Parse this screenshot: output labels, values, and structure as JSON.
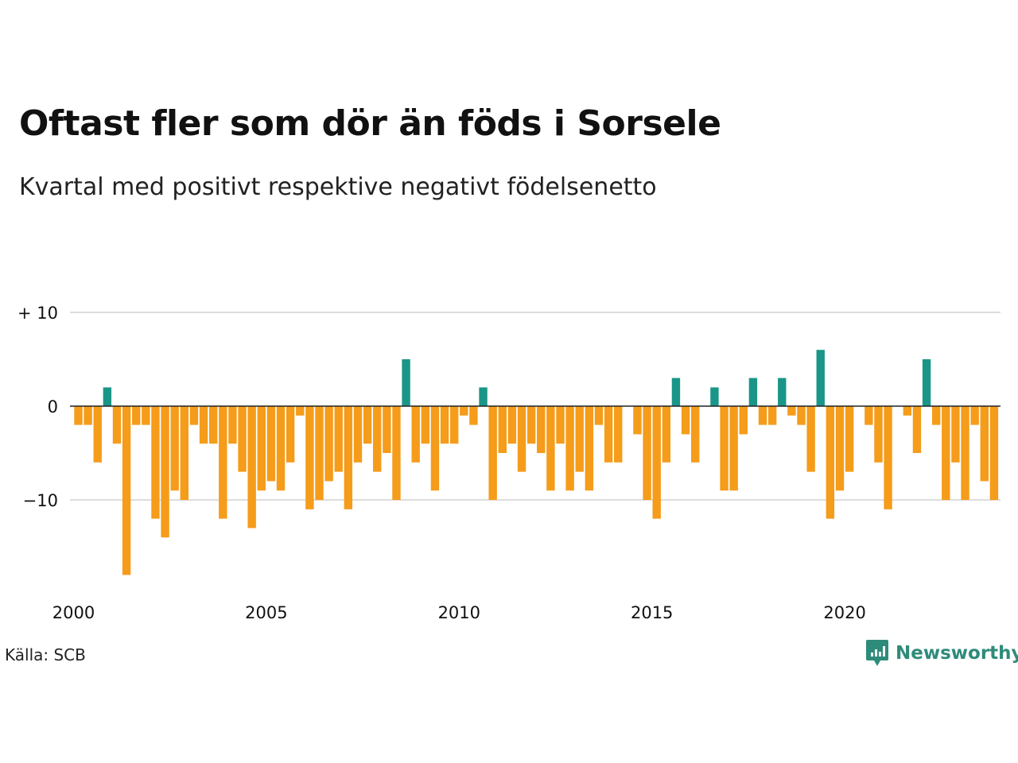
{
  "title": "Oftast fler som dör än föds i Sorsele",
  "subtitle": "Kvartal med positivt respektive negativt födelsenetto",
  "source": "Källa: SCB",
  "logo": {
    "name": "Newsworthy",
    "icon": "newsworthy-logo-icon"
  },
  "colors": {
    "positive": "#1a9688",
    "negative": "#f59c1a",
    "grid": "#dddddd",
    "zero": "#222222",
    "logo": "#2e8b7a"
  },
  "chart_data": {
    "type": "bar",
    "y_tick_labels": [
      "+ 10",
      "0",
      "−10"
    ],
    "y_ticks": [
      10,
      0,
      -10
    ],
    "x_tick_labels": [
      "2000",
      "2005",
      "2010",
      "2015",
      "2020"
    ],
    "x_ticks": [
      2000,
      2005,
      2010,
      2015,
      2020
    ],
    "x_start": 2000,
    "periods_per_year": 4,
    "ylim": [
      -18,
      10
    ],
    "grid": true,
    "values": [
      -2,
      -2,
      -6,
      2,
      -4,
      -18,
      -2,
      -2,
      -12,
      -14,
      -9,
      -10,
      -2,
      -4,
      -4,
      -12,
      -4,
      -7,
      -13,
      -9,
      -8,
      -9,
      -6,
      -1,
      -11,
      -10,
      -8,
      -7,
      -11,
      -6,
      -4,
      -7,
      -5,
      -10,
      5,
      -6,
      -4,
      -9,
      -4,
      -4,
      -1,
      -2,
      2,
      -10,
      -5,
      -4,
      -7,
      -4,
      -5,
      -9,
      -4,
      -9,
      -7,
      -9,
      -2,
      -6,
      -6,
      0,
      -3,
      -10,
      -12,
      -6,
      3,
      -3,
      -6,
      0,
      2,
      -9,
      -9,
      -3,
      3,
      -2,
      -2,
      3,
      -1,
      -2,
      -7,
      6,
      -12,
      -9,
      -7,
      0,
      -2,
      -6,
      -11,
      0,
      -1,
      -5,
      5,
      -2,
      -10,
      -6,
      -10,
      -2,
      -8,
      -10
    ]
  }
}
